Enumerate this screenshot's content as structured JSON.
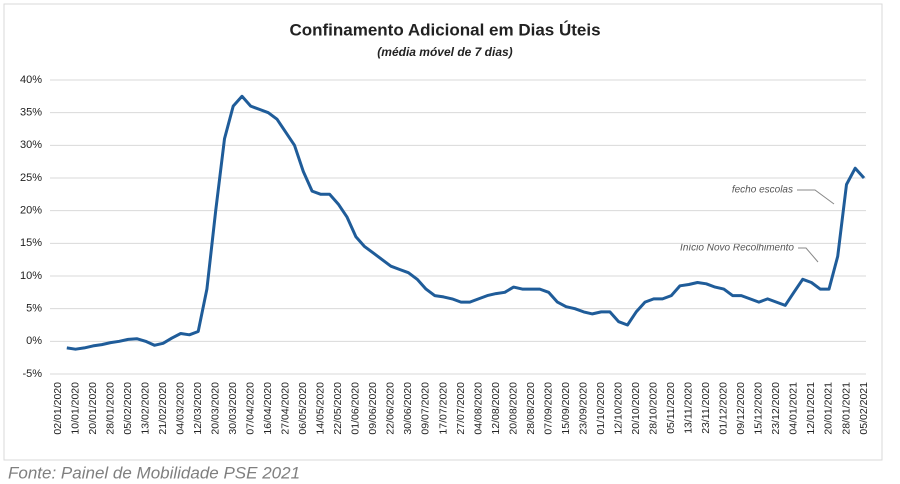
{
  "chart_data": {
    "type": "line",
    "title": "Confinamento Adicional em Dias Úteis",
    "subtitle": "(média móvel de 7 dias)",
    "source": "Fonte: Painel de Mobilidade PSE 2021",
    "annotations": [
      "fecho escolas",
      "Início Novo Recolhimento"
    ],
    "categories": [
      "02/01/2020",
      null,
      "10/01/2020",
      null,
      "20/01/2020",
      null,
      "28/01/2020",
      null,
      "05/02/2020",
      null,
      "13/02/2020",
      null,
      "21/02/2020",
      null,
      "04/03/2020",
      null,
      "12/03/2020",
      null,
      "20/03/2020",
      null,
      "30/03/2020",
      null,
      "07/04/2020",
      null,
      "16/04/2020",
      null,
      "27/04/2020",
      null,
      "06/05/2020",
      null,
      "14/05/2020",
      null,
      "22/05/2020",
      null,
      "01/06/2020",
      null,
      "09/06/2020",
      null,
      "22/06/2020",
      null,
      "30/06/2020",
      null,
      "09/07/2020",
      null,
      "17/07/2020",
      null,
      "27/07/2020",
      null,
      "04/08/2020",
      null,
      "12/08/2020",
      null,
      "20/08/2020",
      null,
      "28/08/2020",
      null,
      "07/09/2020",
      null,
      "15/09/2020",
      null,
      "23/09/2020",
      null,
      "01/10/2020",
      null,
      "12/10/2020",
      null,
      "20/10/2020",
      null,
      "28/10/2020",
      null,
      "05/11/2020",
      null,
      "13/11/2020",
      null,
      "23/11/2020",
      null,
      "01/12/2020",
      null,
      "09/12/2020",
      null,
      "15/12/2020",
      null,
      "23/12/2020",
      null,
      "04/01/2021",
      null,
      "12/01/2021",
      null,
      "20/01/2021",
      null,
      "28/01/2021",
      null,
      "05/02/2021"
    ],
    "series": [
      {
        "color": "#1f5c99",
        "values": [
          null,
          -1,
          -1.2,
          -1,
          -0.7,
          -0.5,
          -0.2,
          0,
          0.3,
          0.4,
          0,
          -0.6,
          -0.3,
          0.5,
          1.2,
          1,
          1.5,
          8,
          20,
          31,
          36,
          37.5,
          36,
          35.5,
          35,
          34,
          32,
          30,
          26,
          23,
          22.5,
          22.5,
          21,
          19,
          16,
          14.5,
          13.5,
          12.5,
          11.5,
          11,
          10.5,
          9.5,
          8,
          7,
          6.8,
          6.5,
          6,
          6,
          6.5,
          7,
          7.3,
          7.5,
          8.3,
          8,
          8,
          8,
          7.5,
          6,
          5.3,
          5,
          4.5,
          4.2,
          4.5,
          4.5,
          3,
          2.5,
          4.5,
          6,
          6.5,
          6.5,
          7,
          8.5,
          8.7,
          9,
          8.8,
          8.3,
          8,
          7,
          7,
          6.5,
          6,
          6.5,
          6,
          5.5,
          7.5,
          9.5,
          9,
          8,
          8,
          13,
          24,
          26.5,
          25
        ]
      }
    ],
    "ylim": [
      -5,
      40
    ],
    "yticks": [
      {
        "value": -5,
        "label": "-5%"
      },
      {
        "value": 0,
        "label": "0%"
      },
      {
        "value": 5,
        "label": "5%"
      },
      {
        "value": 10,
        "label": "10%"
      },
      {
        "value": 15,
        "label": "15%"
      },
      {
        "value": 20,
        "label": "20%"
      },
      {
        "value": 25,
        "label": "25%"
      },
      {
        "value": 30,
        "label": "30%"
      },
      {
        "value": 35,
        "label": "35%"
      },
      {
        "value": 40,
        "label": "40%"
      }
    ],
    "grid": true
  }
}
